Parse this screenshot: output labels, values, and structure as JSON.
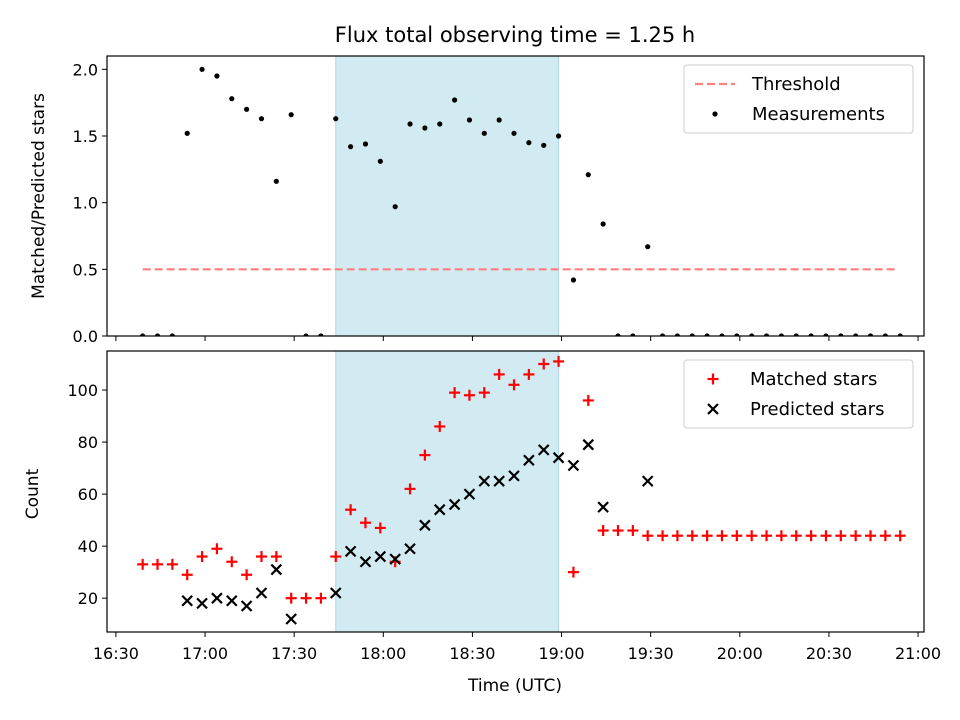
{
  "chart_data": [
    {
      "type": "scatter",
      "title": "Flux total observing time = 1.25 h",
      "xlabel": "",
      "ylabel": "Matched/Predicted stars",
      "xlim": [
        "16:27",
        "21:02"
      ],
      "ylim": [
        0,
        2.1
      ],
      "yticks": [
        0,
        0.5,
        1.0,
        1.5,
        2.0
      ],
      "ytick_labels": [
        "0.0",
        "0.5",
        "1.0",
        "1.5",
        "2.0"
      ],
      "highlight_span": [
        "17:44",
        "18:59"
      ],
      "legend_position": "top-right",
      "colors": {
        "threshold": "#ff7f7f",
        "measurements": "#000000",
        "span": "#add8e6"
      },
      "series": [
        {
          "name": "Threshold",
          "style": "dashed-line",
          "x": [
            "16:39",
            "20:53"
          ],
          "y": [
            0.5,
            0.5
          ]
        },
        {
          "name": "Measurements",
          "style": "dot",
          "x": [
            "16:39",
            "16:44",
            "16:49",
            "16:54",
            "16:59",
            "17:04",
            "17:09",
            "17:14",
            "17:19",
            "17:24",
            "17:29",
            "17:34",
            "17:39",
            "17:44",
            "17:49",
            "17:54",
            "17:59",
            "18:04",
            "18:09",
            "18:14",
            "18:19",
            "18:24",
            "18:29",
            "18:34",
            "18:39",
            "18:44",
            "18:49",
            "18:54",
            "18:59",
            "19:04",
            "19:09",
            "19:14",
            "19:19",
            "19:24",
            "19:29",
            "19:34",
            "19:39",
            "19:44",
            "19:49",
            "19:54",
            "19:59",
            "20:04",
            "20:09",
            "20:14",
            "20:19",
            "20:24",
            "20:29",
            "20:34",
            "20:39",
            "20:44",
            "20:49",
            "20:54"
          ],
          "y": [
            0,
            0,
            0,
            1.52,
            2.0,
            1.95,
            1.78,
            1.7,
            1.63,
            1.16,
            1.66,
            0,
            0,
            1.63,
            1.42,
            1.44,
            1.31,
            0.97,
            1.59,
            1.56,
            1.59,
            1.77,
            1.62,
            1.52,
            1.62,
            1.52,
            1.45,
            1.43,
            1.5,
            0.42,
            1.21,
            0.84,
            0,
            0,
            0.67,
            0,
            0,
            0,
            0,
            0,
            0,
            0,
            0,
            0,
            0,
            0,
            0,
            0,
            0,
            0,
            0,
            0
          ]
        }
      ]
    },
    {
      "type": "scatter",
      "xlabel": "Time (UTC)",
      "ylabel": "Count",
      "xlim": [
        "16:27",
        "21:02"
      ],
      "ylim": [
        7,
        115
      ],
      "xticks": [
        "16:30",
        "17:00",
        "17:30",
        "18:00",
        "18:30",
        "19:00",
        "19:30",
        "20:00",
        "20:30",
        "21:00"
      ],
      "yticks": [
        20,
        40,
        60,
        80,
        100
      ],
      "ytick_labels": [
        "20",
        "40",
        "60",
        "80",
        "100"
      ],
      "highlight_span": [
        "17:44",
        "18:59"
      ],
      "legend_position": "top-right",
      "colors": {
        "matched": "#ff0000",
        "predicted": "#000000",
        "span": "#add8e6"
      },
      "series": [
        {
          "name": "Matched stars",
          "marker": "plus",
          "x": [
            "16:39",
            "16:44",
            "16:49",
            "16:54",
            "16:59",
            "17:04",
            "17:09",
            "17:14",
            "17:19",
            "17:24",
            "17:29",
            "17:34",
            "17:39",
            "17:44",
            "17:49",
            "17:54",
            "17:59",
            "18:04",
            "18:09",
            "18:14",
            "18:19",
            "18:24",
            "18:29",
            "18:34",
            "18:39",
            "18:44",
            "18:49",
            "18:54",
            "18:59",
            "19:04",
            "19:09",
            "19:14",
            "19:19",
            "19:24",
            "19:29",
            "19:34",
            "19:39",
            "19:44",
            "19:49",
            "19:54",
            "19:59",
            "20:04",
            "20:09",
            "20:14",
            "20:19",
            "20:24",
            "20:29",
            "20:34",
            "20:39",
            "20:44",
            "20:49",
            "20:54"
          ],
          "y": [
            33,
            33,
            33,
            29,
            36,
            39,
            34,
            29,
            36,
            36,
            20,
            20,
            20,
            36,
            54,
            49,
            47,
            34,
            62,
            75,
            86,
            99,
            98,
            99,
            106,
            102,
            106,
            110,
            111,
            30,
            96,
            46,
            46,
            46,
            44,
            44,
            44,
            44,
            44,
            44,
            44,
            44,
            44,
            44,
            44,
            44,
            44,
            44,
            44,
            44,
            44,
            44
          ]
        },
        {
          "name": "Predicted stars",
          "marker": "x",
          "x": [
            "16:54",
            "16:59",
            "17:04",
            "17:09",
            "17:14",
            "17:19",
            "17:24",
            "17:29",
            "17:44",
            "17:49",
            "17:54",
            "17:59",
            "18:04",
            "18:09",
            "18:14",
            "18:19",
            "18:24",
            "18:29",
            "18:34",
            "18:39",
            "18:44",
            "18:49",
            "18:54",
            "18:59",
            "19:04",
            "19:09",
            "19:14",
            "19:29"
          ],
          "y": [
            19,
            18,
            20,
            19,
            17,
            22,
            31,
            12,
            22,
            38,
            34,
            36,
            35,
            39,
            48,
            54,
            56,
            60,
            65,
            65,
            67,
            73,
            77,
            74,
            71,
            79,
            55,
            65
          ]
        }
      ]
    }
  ]
}
